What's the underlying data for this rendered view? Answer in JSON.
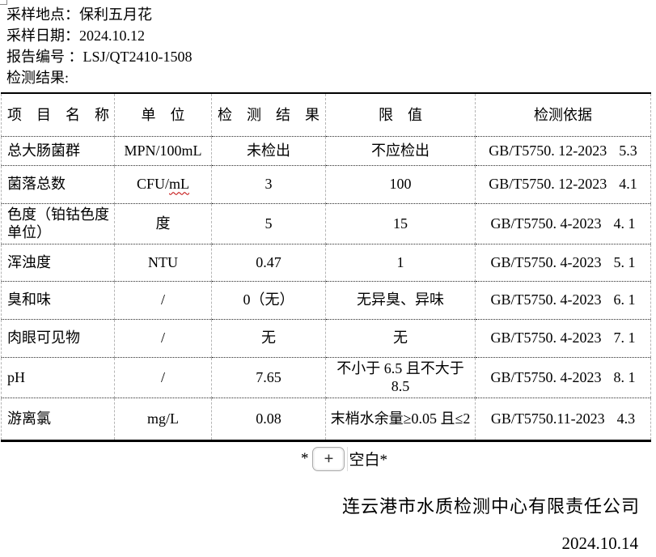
{
  "header": {
    "lines": [
      {
        "label": "采样地点：",
        "value": "保利五月花"
      },
      {
        "label": "采样日期：",
        "value": "2024.10.12"
      },
      {
        "label": "报告编号 ：",
        "value": "LSJ/QT2410-1508"
      },
      {
        "label": "检测结果:",
        "value": ""
      }
    ]
  },
  "table": {
    "columns": [
      "项　目　名　称",
      "单　位",
      "检　测　结　果",
      "限　值",
      "检测依据"
    ],
    "rows": [
      {
        "name": "总大肠菌群",
        "unit": "MPN/100mL",
        "result": "未检出",
        "limit": "不应检出",
        "basis": "GB/T5750. 12-2023",
        "clause": "5.3"
      },
      {
        "name": "菌落总数",
        "unit_prefix": "CFU/",
        "unit_misspelled": "mL",
        "result": "3",
        "limit": "100",
        "basis": "GB/T5750. 12-2023",
        "clause": "4.1"
      },
      {
        "name": "色度（铂钴色度单位）",
        "unit": "度",
        "result": "5",
        "limit": "15",
        "basis": "GB/T5750. 4-2023",
        "clause": "4. 1"
      },
      {
        "name": "浑浊度",
        "unit": "NTU",
        "result": "0.47",
        "limit": "1",
        "basis": "GB/T5750. 4-2023",
        "clause": "5. 1"
      },
      {
        "name": "臭和味",
        "unit": "/",
        "result": "0（无）",
        "limit": "无异臭、异味",
        "basis": "GB/T5750. 4-2023",
        "clause": "6. 1"
      },
      {
        "name": "肉眼可见物",
        "unit": "/",
        "result": "无",
        "limit": "无",
        "basis": "GB/T5750. 4-2023",
        "clause": "7. 1"
      },
      {
        "name": "pH",
        "unit": "/",
        "result": "7.65",
        "limit": "不小于 6.5 且不大于 8.5",
        "basis": "GB/T5750. 4-2023",
        "clause": "8. 1"
      },
      {
        "name": "游离氯",
        "unit": "mg/L",
        "result": "0.08",
        "limit": "末梢水余量≥0.05 且≤2",
        "basis": "GB/T5750.11-2023",
        "clause": "4.3"
      }
    ]
  },
  "footer": {
    "blank_note_prefix": "*",
    "placeholder_glyph": "+",
    "blank_note_suffix": "空白*",
    "company": "连云港市水质检测中心有限责任公司",
    "date": "2024.10.14"
  }
}
